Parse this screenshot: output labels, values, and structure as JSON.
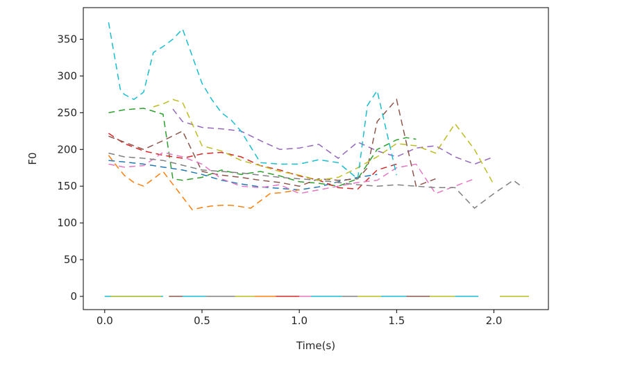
{
  "chart_data": {
    "type": "line",
    "xlabel": "Time(s)",
    "ylabel": "F0",
    "xlim": [
      -0.11,
      2.28
    ],
    "ylim": [
      -18,
      393
    ],
    "x_ticks": [
      0.0,
      0.5,
      1.0,
      1.5,
      2.0
    ],
    "x_tick_labels": [
      "0.0",
      "0.5",
      "1.0",
      "1.5",
      "2.0"
    ],
    "y_ticks": [
      0,
      50,
      100,
      150,
      200,
      250,
      300,
      350
    ],
    "y_tick_labels": [
      "0",
      "50",
      "100",
      "150",
      "200",
      "250",
      "300",
      "350"
    ],
    "grid": false,
    "colors": [
      "#1f77b4",
      "#ff7f0e",
      "#2ca02c",
      "#d62728",
      "#9467bd",
      "#8c564b",
      "#e377c2",
      "#7f7f7f",
      "#bcbd22",
      "#17becf"
    ],
    "series": [
      {
        "x": [
          0.02,
          0.1,
          0.2,
          0.3,
          0.4,
          0.5,
          0.6,
          0.7,
          0.8,
          0.9,
          1.0,
          1.1,
          1.2,
          1.3,
          1.4
        ],
        "y": [
          185,
          183,
          180,
          176,
          172,
          166,
          158,
          153,
          149,
          147,
          145,
          149,
          156,
          162,
          166
        ]
      },
      {
        "x": [
          0.02,
          0.06,
          0.1,
          0.15,
          0.2,
          0.25,
          0.3,
          0.45,
          0.5,
          0.55,
          0.6,
          0.65,
          0.7,
          0.75,
          0.85,
          0.9,
          0.95,
          1.0
        ],
        "y": [
          192,
          178,
          165,
          155,
          150,
          160,
          170,
          118,
          121,
          123,
          124,
          124,
          122,
          120,
          140,
          141,
          143,
          145
        ]
      },
      {
        "x": [
          0.02,
          0.1,
          0.2,
          0.3,
          0.35,
          0.4,
          0.5,
          0.6,
          0.7,
          0.8,
          0.9,
          1.0,
          1.1,
          1.2,
          1.3,
          1.4,
          1.5,
          1.55,
          1.6
        ],
        "y": [
          250,
          254,
          256,
          248,
          160,
          158,
          162,
          172,
          166,
          170,
          164,
          156,
          154,
          150,
          160,
          200,
          213,
          216,
          214
        ]
      },
      {
        "x": [
          0.02,
          0.1,
          0.2,
          0.3,
          0.4,
          0.5,
          0.6,
          0.7,
          0.8,
          0.9,
          1.0,
          1.1,
          1.2,
          1.3,
          1.4,
          1.5
        ],
        "y": [
          222,
          208,
          198,
          192,
          188,
          194,
          196,
          190,
          178,
          172,
          164,
          158,
          148,
          146,
          172,
          180
        ]
      },
      {
        "x": [
          0.35,
          0.4,
          0.5,
          0.6,
          0.7,
          0.8,
          0.9,
          1.0,
          1.1,
          1.2,
          1.3,
          1.4,
          1.5,
          1.6,
          1.7,
          1.8,
          1.9,
          2.0
        ],
        "y": [
          255,
          238,
          230,
          228,
          225,
          212,
          200,
          202,
          207,
          188,
          210,
          198,
          190,
          202,
          205,
          190,
          180,
          190
        ]
      },
      {
        "x": [
          0.02,
          0.1,
          0.2,
          0.3,
          0.4,
          0.5,
          0.6,
          0.7,
          0.8,
          0.9,
          1.0,
          1.1,
          1.2,
          1.3,
          1.35,
          1.4,
          1.5,
          1.6,
          1.7
        ],
        "y": [
          218,
          210,
          200,
          212,
          225,
          170,
          165,
          162,
          158,
          155,
          150,
          160,
          158,
          160,
          175,
          238,
          268,
          150,
          160
        ]
      },
      {
        "x": [
          0.02,
          0.1,
          0.2,
          0.3,
          0.4,
          0.5,
          0.6,
          0.7,
          0.8,
          0.9,
          1.0,
          1.1,
          1.2,
          1.3,
          1.4,
          1.5,
          1.6,
          1.7,
          1.8,
          1.9
        ],
        "y": [
          180,
          176,
          178,
          196,
          190,
          180,
          160,
          150,
          148,
          152,
          140,
          145,
          150,
          155,
          158,
          175,
          180,
          140,
          150,
          160
        ]
      },
      {
        "x": [
          0.02,
          0.1,
          0.2,
          0.3,
          0.5,
          0.6,
          0.7,
          0.8,
          0.9,
          1.0,
          1.1,
          1.2,
          1.3,
          1.4,
          1.5,
          1.6,
          1.7,
          1.8,
          1.9,
          2.0,
          2.1,
          2.15
        ],
        "y": [
          195,
          190,
          188,
          185,
          172,
          170,
          168,
          165,
          162,
          160,
          158,
          155,
          152,
          150,
          152,
          150,
          148,
          148,
          120,
          140,
          158,
          148
        ]
      },
      {
        "x": [
          0.25,
          0.3,
          0.35,
          0.4,
          0.5,
          0.6,
          0.7,
          0.8,
          0.9,
          1.0,
          1.1,
          1.2,
          1.3,
          1.4,
          1.5,
          1.6,
          1.7,
          1.8,
          1.9,
          2.0
        ],
        "y": [
          258,
          262,
          268,
          264,
          205,
          198,
          185,
          178,
          170,
          165,
          158,
          162,
          175,
          190,
          208,
          205,
          195,
          235,
          200,
          152
        ]
      },
      {
        "x": [
          0.02,
          0.08,
          0.1,
          0.15,
          0.2,
          0.25,
          0.3,
          0.35,
          0.4,
          0.5,
          0.55,
          0.6,
          0.65,
          0.7,
          0.8,
          0.9,
          1.0,
          1.1,
          1.2,
          1.3,
          1.35,
          1.4,
          1.5
        ],
        "y": [
          373,
          282,
          275,
          268,
          278,
          332,
          340,
          350,
          364,
          290,
          268,
          250,
          240,
          225,
          182,
          180,
          180,
          186,
          182,
          160,
          260,
          280,
          165
        ]
      },
      {
        "x": [
          0.0,
          0.3
        ],
        "y": [
          0,
          0
        ],
        "color": "#17becf"
      },
      {
        "x": [
          0.03,
          0.29
        ],
        "y": [
          0,
          0
        ],
        "color": "#bcbd22"
      },
      {
        "x": [
          0.33,
          0.4
        ],
        "y": [
          0,
          0
        ],
        "color": "#8c564b"
      },
      {
        "x": [
          0.4,
          0.52
        ],
        "y": [
          0,
          0
        ],
        "color": "#17becf"
      },
      {
        "x": [
          0.52,
          0.67
        ],
        "y": [
          0,
          0
        ],
        "color": "#7f7f7f"
      },
      {
        "x": [
          0.67,
          0.77
        ],
        "y": [
          0,
          0
        ],
        "color": "#bcbd22"
      },
      {
        "x": [
          0.77,
          0.88
        ],
        "y": [
          0,
          0
        ],
        "color": "#ff7f0e"
      },
      {
        "x": [
          0.88,
          1.0
        ],
        "y": [
          0,
          0
        ],
        "color": "#d62728"
      },
      {
        "x": [
          1.0,
          1.06
        ],
        "y": [
          0,
          0
        ],
        "color": "#e377c2"
      },
      {
        "x": [
          1.06,
          1.22
        ],
        "y": [
          0,
          0
        ],
        "color": "#17becf"
      },
      {
        "x": [
          1.22,
          1.3
        ],
        "y": [
          0,
          0
        ],
        "color": "#7f7f7f"
      },
      {
        "x": [
          1.3,
          1.42
        ],
        "y": [
          0,
          0
        ],
        "color": "#bcbd22"
      },
      {
        "x": [
          1.42,
          1.55
        ],
        "y": [
          0,
          0
        ],
        "color": "#17becf"
      },
      {
        "x": [
          1.55,
          1.67
        ],
        "y": [
          0,
          0
        ],
        "color": "#8c564b"
      },
      {
        "x": [
          1.67,
          1.8
        ],
        "y": [
          0,
          0
        ],
        "color": "#bcbd22"
      },
      {
        "x": [
          1.8,
          1.92
        ],
        "y": [
          0,
          0
        ],
        "color": "#17becf"
      },
      {
        "x": [
          2.03,
          2.18
        ],
        "y": [
          0,
          0
        ],
        "color": "#bcbd22"
      }
    ]
  }
}
